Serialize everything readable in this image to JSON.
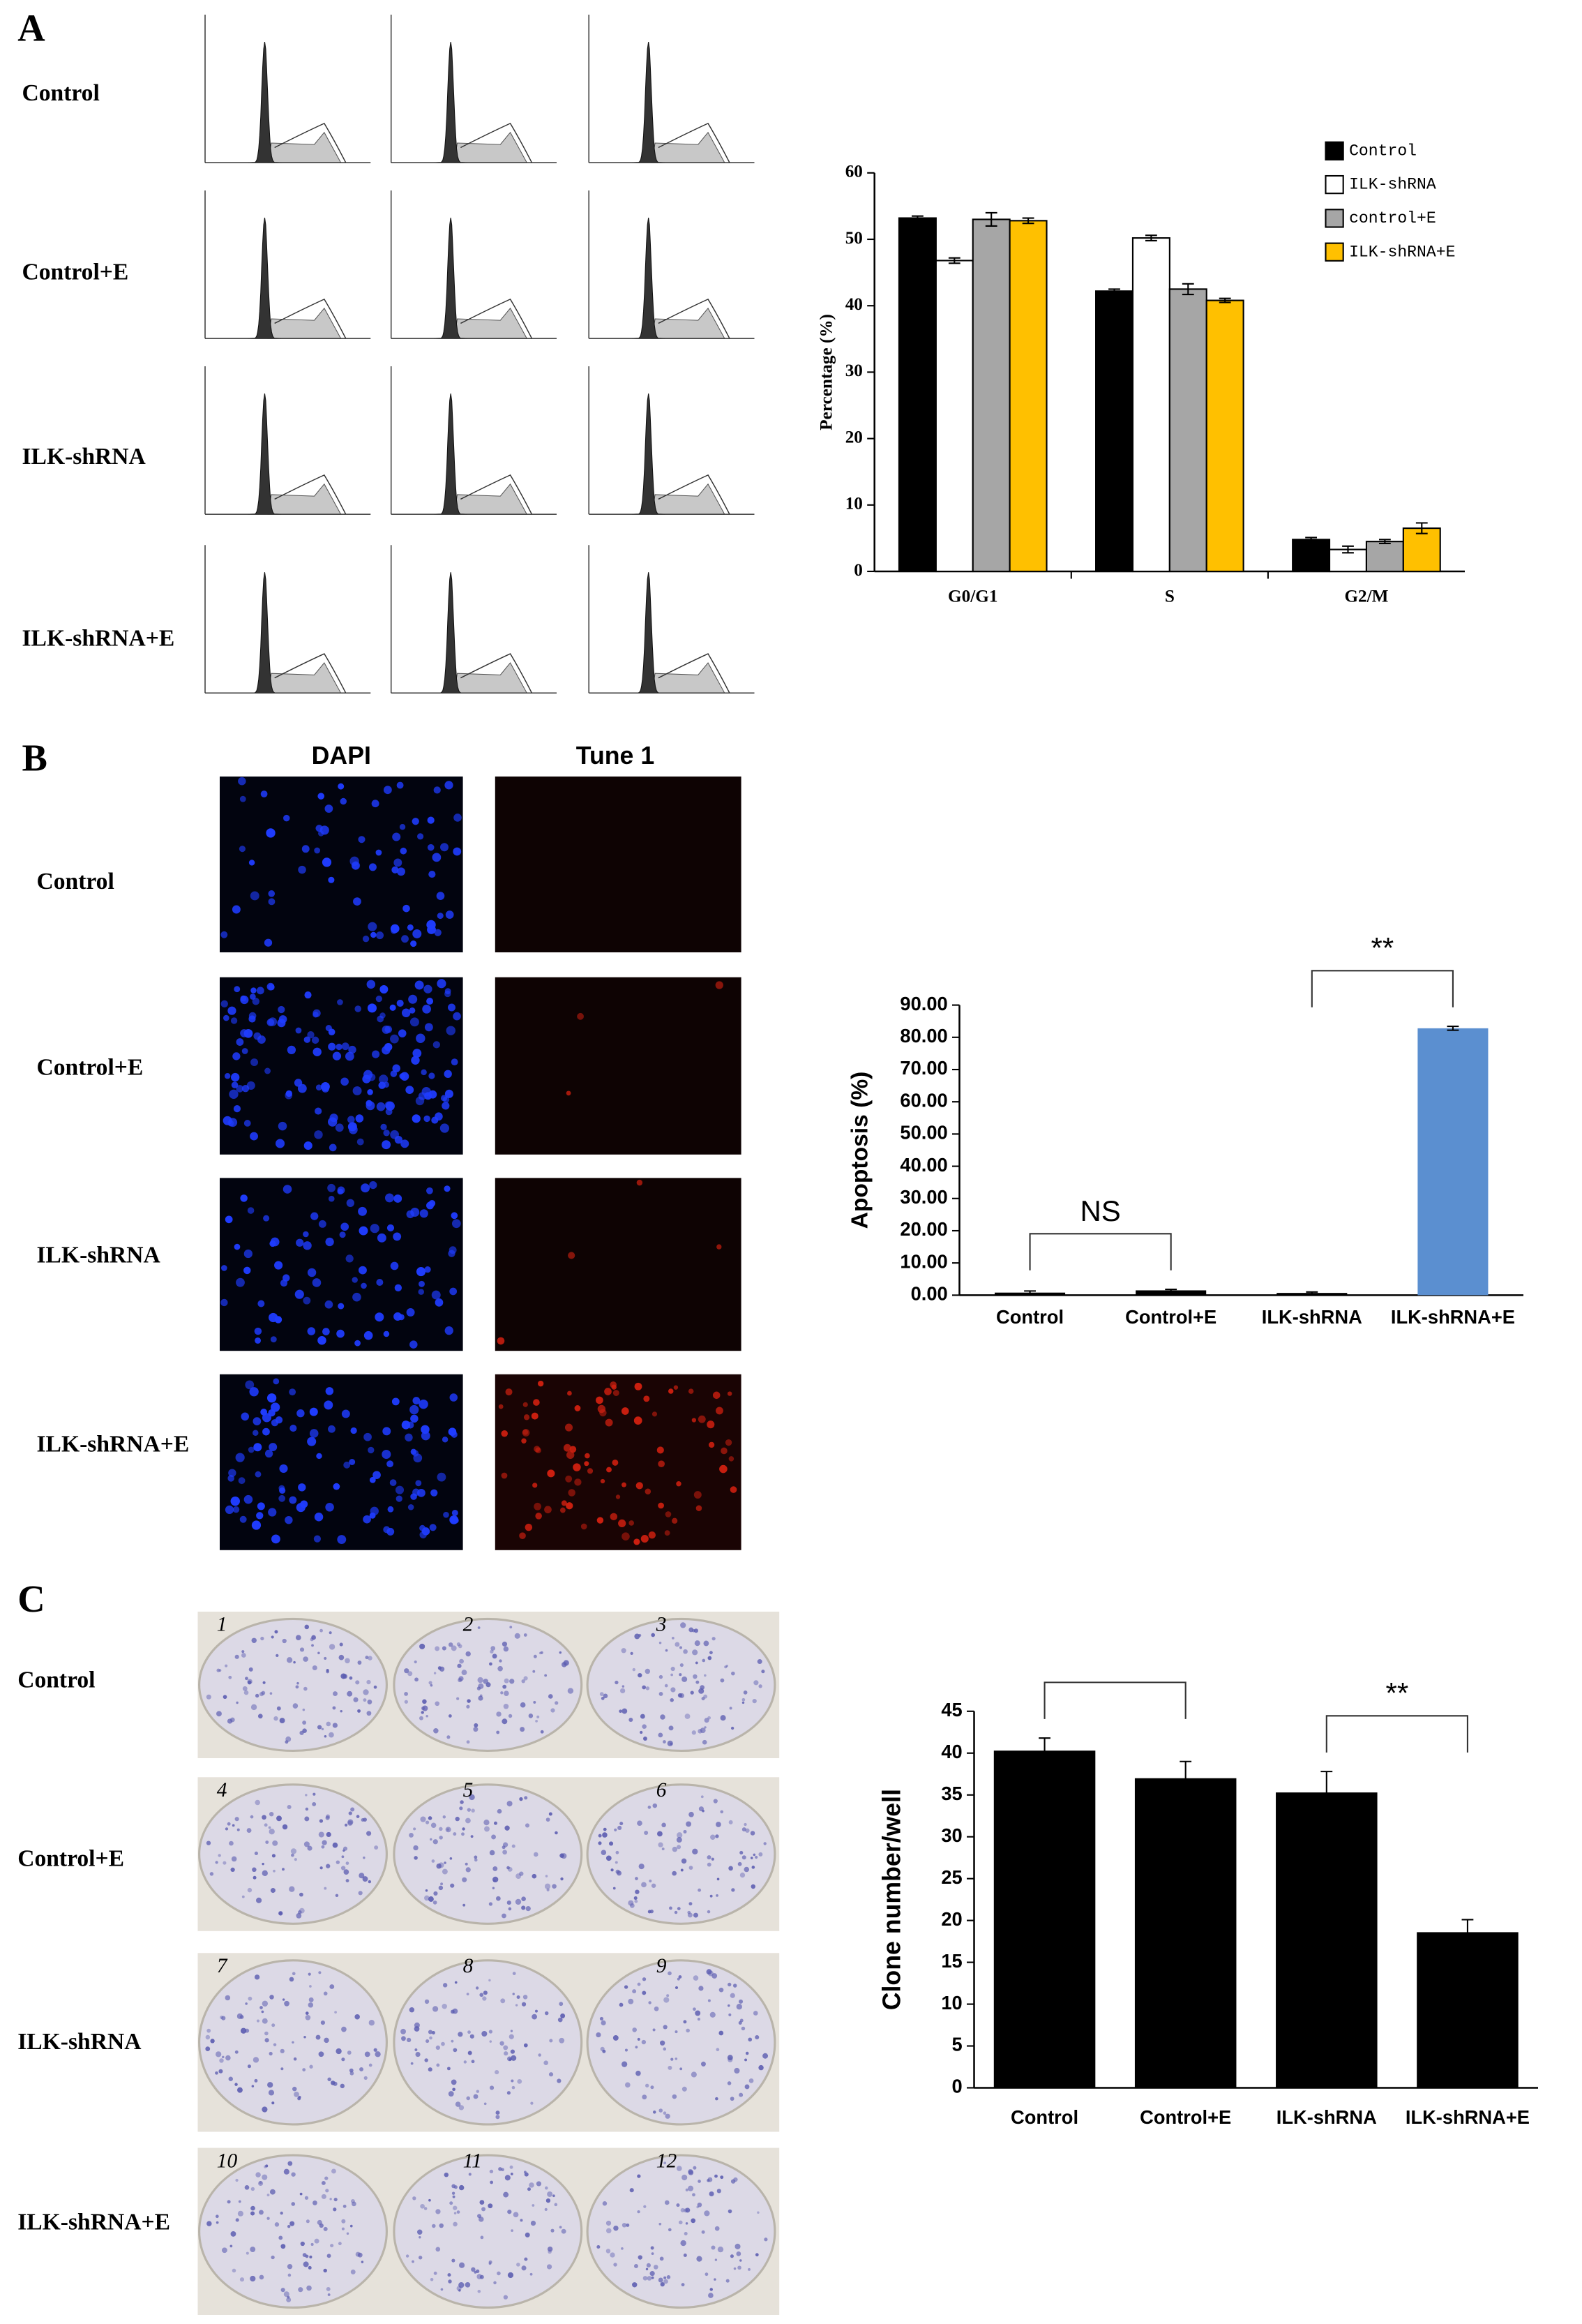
{
  "panels": [
    "A",
    "B",
    "C"
  ],
  "panel_a": {
    "rows": [
      "Control",
      "Control+E",
      "ILK-shRNA",
      "ILK-shRNA+E"
    ]
  },
  "panel_b": {
    "columns": [
      "DAPI",
      "Tune 1"
    ],
    "rows": [
      "Control",
      "Control+E",
      "ILK-shRNA",
      "ILK-shRNA+E"
    ]
  },
  "panel_c": {
    "rows": [
      "Control",
      "Control+E",
      "ILK-shRNA",
      "ILK-shRNA+E"
    ],
    "well_numbers": [
      1,
      2,
      3,
      4,
      5,
      6,
      7,
      8,
      9,
      10,
      11,
      12
    ]
  },
  "chart_data": [
    {
      "type": "bar",
      "ylabel": "Percentage (%)",
      "categories": [
        "G0/G1",
        "S",
        "G2/M"
      ],
      "series": [
        {
          "name": "Control",
          "color": "#000000",
          "values": [
            53.2,
            42.2,
            4.8
          ],
          "errors": [
            0.3,
            0.3,
            0.3
          ]
        },
        {
          "name": "ILK-shRNA",
          "color": "#ffffff",
          "values": [
            46.8,
            50.2,
            3.3
          ],
          "errors": [
            0.4,
            0.4,
            0.5
          ]
        },
        {
          "name": "control+E",
          "color": "#a6a6a6",
          "values": [
            53.0,
            42.5,
            4.5
          ],
          "errors": [
            1.0,
            0.8,
            0.3
          ]
        },
        {
          "name": "ILK-shRNA+E",
          "color": "#ffc000",
          "values": [
            52.8,
            40.8,
            6.5
          ],
          "errors": [
            0.4,
            0.3,
            0.8
          ]
        }
      ],
      "ylim": [
        0,
        60
      ],
      "yticks": [
        0,
        10,
        20,
        30,
        40,
        50,
        60
      ],
      "legend": "upper right"
    },
    {
      "type": "bar",
      "ylabel": "Apoptosis (%)",
      "categories": [
        "Control",
        "Control+E",
        "ILK-shRNA",
        "ILK-shRNA+E"
      ],
      "values": [
        0.8,
        1.5,
        0.7,
        82.8
      ],
      "errors": [
        0.5,
        0.3,
        0.3,
        0.6
      ],
      "colors": [
        "#000000",
        "#000000",
        "#000000",
        "#5b8fd0"
      ],
      "ylim": [
        0,
        90
      ],
      "yticks": [
        {
          "value": 0,
          "label": "0.00"
        },
        {
          "value": 10,
          "label": "10.00"
        },
        {
          "value": 20,
          "label": "20.00"
        },
        {
          "value": 30,
          "label": "30.00"
        },
        {
          "value": 40,
          "label": "40.00"
        },
        {
          "value": 50,
          "label": "50.00"
        },
        {
          "value": 60,
          "label": "60.00"
        },
        {
          "value": 70,
          "label": "70.00"
        },
        {
          "value": 80,
          "label": "80.00"
        },
        {
          "value": 90,
          "label": "90.00"
        }
      ],
      "annotations": [
        {
          "text": "NS",
          "from": 0,
          "to": 1
        },
        {
          "text": "**",
          "from": 2,
          "to": 3
        }
      ]
    },
    {
      "type": "bar",
      "ylabel": "Clone number/well",
      "categories": [
        "Control",
        "Control+E",
        "ILK-shRNA",
        "ILK-shRNA+E"
      ],
      "values": [
        40.3,
        37.0,
        35.3,
        18.6
      ],
      "errors": [
        1.5,
        2.0,
        2.5,
        1.5
      ],
      "colors": [
        "#000000",
        "#000000",
        "#000000",
        "#000000"
      ],
      "ylim": [
        0,
        45
      ],
      "yticks": [
        0,
        5,
        10,
        15,
        20,
        25,
        30,
        35,
        40,
        45
      ],
      "annotations": [
        {
          "from": 0,
          "to": 1
        },
        {
          "text": "**",
          "from": 2,
          "to": 3
        }
      ]
    }
  ]
}
